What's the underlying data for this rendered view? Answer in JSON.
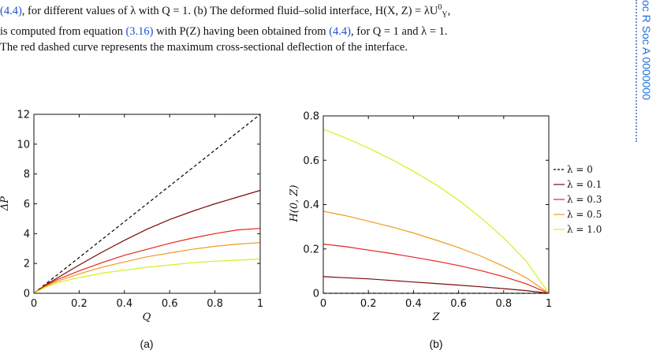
{
  "caption": {
    "line1_ref": "(4.4)",
    "line1_text": ", for different values of λ with Q = 1. (b) The deformed fluid–solid interface, H(X, Z) = λU",
    "line1_sup": "0",
    "line1_sub": "Y",
    "line1_end": ",",
    "line2_pre": "is computed from equation ",
    "line2_ref1": "(3.16)",
    "line2_mid": " with P(Z) having been obtained from ",
    "line2_ref2": "(4.4)",
    "line2_end": ", for Q = 1 and λ = 1.",
    "line3": "The red dashed curve represents the maximum cross-sectional deflection of the interface."
  },
  "sidebar": {
    "text": "oc R Soc A 0000000"
  },
  "chart_data": [
    {
      "type": "line",
      "panel_label": "(a)",
      "xlabel": "Q",
      "ylabel": "ΔP",
      "xlim": [
        0,
        1
      ],
      "ylim": [
        0,
        12
      ],
      "xticks": [
        "0",
        "0.2",
        "0.4",
        "0.6",
        "0.8",
        "1"
      ],
      "yticks": [
        "0",
        "2",
        "4",
        "6",
        "8",
        "10",
        "12"
      ],
      "series": [
        {
          "name": "λ = 0",
          "color": "#000000",
          "dashed": true,
          "x": [
            0,
            1
          ],
          "y": [
            0,
            12
          ]
        },
        {
          "name": "λ = 0.1",
          "color": "#7a0a0a",
          "x": [
            0,
            0.05,
            0.1,
            0.2,
            0.3,
            0.4,
            0.5,
            0.6,
            0.7,
            0.8,
            0.9,
            1.0
          ],
          "y": [
            0,
            0.55,
            1.0,
            1.9,
            2.75,
            3.55,
            4.3,
            4.95,
            5.5,
            6.0,
            6.45,
            6.9
          ]
        },
        {
          "name": "λ = 0.3",
          "color": "#e8241c",
          "x": [
            0,
            0.05,
            0.1,
            0.2,
            0.3,
            0.4,
            0.5,
            0.6,
            0.7,
            0.8,
            0.9,
            1.0
          ],
          "y": [
            0,
            0.5,
            0.9,
            1.5,
            2.05,
            2.55,
            2.95,
            3.35,
            3.7,
            4.0,
            4.25,
            4.35
          ]
        },
        {
          "name": "λ = 0.5",
          "color": "#f29a1d",
          "x": [
            0,
            0.05,
            0.1,
            0.2,
            0.3,
            0.4,
            0.5,
            0.6,
            0.7,
            0.8,
            0.9,
            1.0
          ],
          "y": [
            0,
            0.45,
            0.8,
            1.3,
            1.75,
            2.1,
            2.45,
            2.7,
            2.95,
            3.15,
            3.3,
            3.4
          ]
        },
        {
          "name": "λ = 1.0",
          "color": "#d4f01f",
          "x": [
            0,
            0.05,
            0.1,
            0.2,
            0.3,
            0.4,
            0.5,
            0.6,
            0.7,
            0.8,
            0.9,
            1.0
          ],
          "y": [
            0,
            0.4,
            0.7,
            1.05,
            1.35,
            1.55,
            1.75,
            1.9,
            2.05,
            2.15,
            2.22,
            2.3
          ]
        }
      ]
    },
    {
      "type": "line",
      "panel_label": "(b)",
      "xlabel": "Z",
      "ylabel": "H(0, Z)",
      "xlim": [
        0,
        1
      ],
      "ylim": [
        0,
        0.8
      ],
      "xticks": [
        "0",
        "0.2",
        "0.4",
        "0.6",
        "0.8",
        "1"
      ],
      "yticks": [
        "0",
        "0.2",
        "0.4",
        "0.6",
        "0.8"
      ],
      "legend_position": "right",
      "series": [
        {
          "name": "λ = 0",
          "color": "#000000",
          "dashed": true,
          "x": [
            0,
            1
          ],
          "y": [
            0,
            0
          ]
        },
        {
          "name": "λ = 0.1",
          "color": "#7a0a0a",
          "x": [
            0,
            0.1,
            0.2,
            0.3,
            0.4,
            0.5,
            0.6,
            0.7,
            0.8,
            0.9,
            1.0
          ],
          "y": [
            0.075,
            0.07,
            0.065,
            0.058,
            0.051,
            0.044,
            0.037,
            0.029,
            0.021,
            0.012,
            0
          ]
        },
        {
          "name": "λ = 0.3",
          "color": "#e8241c",
          "x": [
            0,
            0.1,
            0.2,
            0.3,
            0.4,
            0.5,
            0.6,
            0.7,
            0.8,
            0.9,
            1.0
          ],
          "y": [
            0.222,
            0.21,
            0.195,
            0.18,
            0.163,
            0.145,
            0.125,
            0.102,
            0.075,
            0.043,
            0
          ]
        },
        {
          "name": "λ = 0.5",
          "color": "#f29a1d",
          "x": [
            0,
            0.1,
            0.2,
            0.3,
            0.4,
            0.5,
            0.6,
            0.7,
            0.8,
            0.9,
            1.0
          ],
          "y": [
            0.37,
            0.35,
            0.325,
            0.3,
            0.272,
            0.24,
            0.206,
            0.167,
            0.122,
            0.07,
            0
          ]
        },
        {
          "name": "λ = 1.0",
          "color": "#d4f01f",
          "x": [
            0,
            0.1,
            0.2,
            0.3,
            0.4,
            0.5,
            0.6,
            0.7,
            0.8,
            0.9,
            1.0
          ],
          "y": [
            0.74,
            0.7,
            0.655,
            0.605,
            0.55,
            0.49,
            0.42,
            0.34,
            0.25,
            0.145,
            0
          ]
        }
      ]
    }
  ]
}
